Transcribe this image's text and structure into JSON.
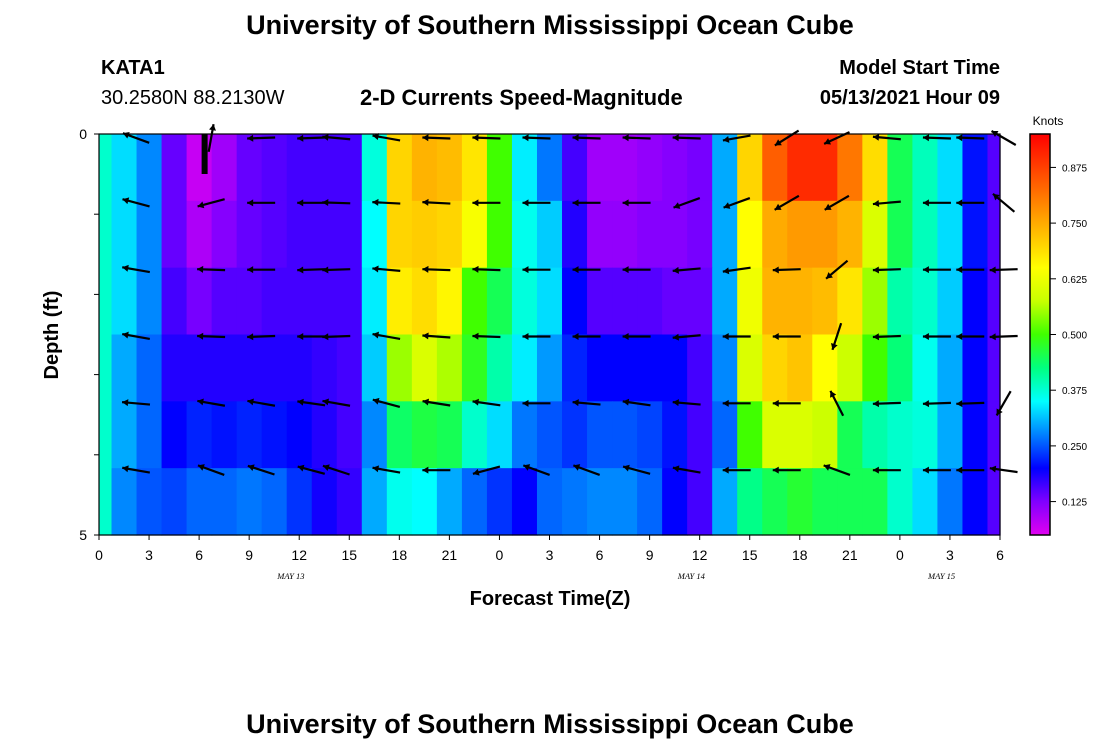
{
  "header": {
    "title": "University of Southern Mississippi Ocean Cube",
    "station": "KATA1",
    "coords": "30.2580N  88.2130W",
    "plot_title": "2-D Currents Speed-Magnitude",
    "model_label": "Model Start Time",
    "model_time": "05/13/2021 Hour 09"
  },
  "footer": {
    "title": "University of Southern Mississippi Ocean Cube"
  },
  "colors": {
    "scale": [
      "#e000f0",
      "#8000ff",
      "#0000ff",
      "#0080ff",
      "#00ffff",
      "#00ff80",
      "#40ff00",
      "#c8ff00",
      "#ffff00",
      "#ffc000",
      "#ff8000",
      "#ff4000",
      "#ff0000"
    ]
  },
  "chart_data": {
    "type": "heatmap",
    "title": "2-D Currents Speed-Magnitude",
    "xlabel": "Forecast Time(Z)",
    "ylabel": "Depth (ft)",
    "colorbar_label": "Knots",
    "colorbar_ticks": [
      "0.125",
      "0.250",
      "0.375",
      "0.500",
      "0.625",
      "0.750",
      "0.875"
    ],
    "colorbar_tick_values": [
      0.125,
      0.25,
      0.375,
      0.5,
      0.625,
      0.75,
      0.875
    ],
    "colorbar_range": [
      0.05,
      0.95
    ],
    "x_range_hours": [
      0,
      54
    ],
    "x_tick_labels": [
      "0",
      "3",
      "6",
      "9",
      "12",
      "15",
      "18",
      "21",
      "0",
      "3",
      "6",
      "9",
      "12",
      "15",
      "18",
      "21",
      "0",
      "3",
      "6"
    ],
    "y_tick_labels": [
      "0",
      "5"
    ],
    "y_range": [
      0,
      5
    ],
    "date_labels": [
      {
        "text": "MAY 13",
        "hour": 11.5
      },
      {
        "text": "MAY 14",
        "hour": 35.5
      },
      {
        "text": "MAY 15",
        "hour": 50.5
      }
    ],
    "speed_grid_hours": [
      0,
      1.5,
      3,
      4.5,
      6,
      7.5,
      9,
      10.5,
      12,
      13.5,
      15,
      16.5,
      18,
      19.5,
      21,
      22.5,
      24,
      25.5,
      27,
      28.5,
      30,
      31.5,
      33,
      34.5,
      36,
      37.5,
      39,
      40.5,
      42,
      43.5,
      45,
      46.5,
      48,
      49.5,
      51,
      52.5,
      54
    ],
    "speed_rows": [
      [
        0.38,
        0.33,
        0.28,
        0.14,
        0.07,
        0.1,
        0.14,
        0.15,
        0.16,
        0.16,
        0.16,
        0.37,
        0.7,
        0.74,
        0.73,
        0.68,
        0.5,
        0.34,
        0.27,
        0.16,
        0.1,
        0.1,
        0.11,
        0.12,
        0.13,
        0.3,
        0.7,
        0.84,
        0.9,
        0.9,
        0.81,
        0.69,
        0.45,
        0.39,
        0.33,
        0.21,
        0.15
      ],
      [
        0.38,
        0.33,
        0.28,
        0.14,
        0.09,
        0.12,
        0.14,
        0.15,
        0.16,
        0.16,
        0.16,
        0.35,
        0.7,
        0.71,
        0.7,
        0.64,
        0.5,
        0.36,
        0.32,
        0.18,
        0.11,
        0.11,
        0.12,
        0.12,
        0.13,
        0.3,
        0.65,
        0.75,
        0.77,
        0.77,
        0.74,
        0.6,
        0.45,
        0.39,
        0.33,
        0.21,
        0.15
      ],
      [
        0.38,
        0.33,
        0.28,
        0.16,
        0.13,
        0.15,
        0.15,
        0.16,
        0.16,
        0.16,
        0.16,
        0.34,
        0.67,
        0.69,
        0.66,
        0.5,
        0.45,
        0.37,
        0.33,
        0.2,
        0.15,
        0.15,
        0.15,
        0.14,
        0.14,
        0.3,
        0.63,
        0.74,
        0.74,
        0.73,
        0.68,
        0.55,
        0.4,
        0.38,
        0.32,
        0.2,
        0.15
      ],
      [
        0.38,
        0.3,
        0.26,
        0.18,
        0.18,
        0.18,
        0.18,
        0.18,
        0.18,
        0.17,
        0.16,
        0.32,
        0.55,
        0.6,
        0.56,
        0.48,
        0.4,
        0.34,
        0.29,
        0.22,
        0.2,
        0.2,
        0.2,
        0.2,
        0.16,
        0.28,
        0.6,
        0.7,
        0.72,
        0.65,
        0.58,
        0.5,
        0.43,
        0.36,
        0.3,
        0.2,
        0.15
      ],
      [
        0.38,
        0.3,
        0.26,
        0.2,
        0.22,
        0.21,
        0.22,
        0.21,
        0.2,
        0.18,
        0.16,
        0.28,
        0.44,
        0.46,
        0.45,
        0.38,
        0.33,
        0.27,
        0.25,
        0.23,
        0.25,
        0.25,
        0.24,
        0.21,
        0.16,
        0.26,
        0.5,
        0.6,
        0.6,
        0.58,
        0.45,
        0.4,
        0.38,
        0.37,
        0.3,
        0.2,
        0.15
      ],
      [
        0.38,
        0.28,
        0.25,
        0.24,
        0.26,
        0.26,
        0.27,
        0.26,
        0.23,
        0.19,
        0.17,
        0.3,
        0.36,
        0.35,
        0.3,
        0.26,
        0.23,
        0.2,
        0.26,
        0.27,
        0.28,
        0.28,
        0.26,
        0.2,
        0.16,
        0.3,
        0.42,
        0.45,
        0.47,
        0.45,
        0.45,
        0.45,
        0.38,
        0.33,
        0.27,
        0.2,
        0.15
      ]
    ],
    "vector_hours": [
      1.5,
      6,
      9,
      12,
      13.5,
      16.5,
      19.5,
      22.5,
      25.5,
      28.5,
      31.5,
      34.5,
      37.5,
      40.5,
      43.5,
      46.5,
      49.5,
      51.5,
      53.5
    ],
    "vector_rows_deg": [
      [
        200,
        280,
        178,
        178,
        185,
        190,
        182,
        182,
        182,
        182,
        182,
        182,
        170,
        148,
        155,
        185,
        182,
        182,
        210
      ],
      [
        195,
        165,
        180,
        180,
        182,
        183,
        183,
        180,
        180,
        180,
        180,
        160,
        160,
        150,
        150,
        175,
        180,
        180,
        220
      ],
      [
        190,
        182,
        180,
        178,
        178,
        185,
        182,
        182,
        180,
        180,
        180,
        175,
        172,
        178,
        140,
        178,
        180,
        180,
        178
      ],
      [
        190,
        182,
        178,
        180,
        178,
        190,
        184,
        182,
        180,
        180,
        180,
        175,
        180,
        180,
        108,
        178,
        180,
        180,
        178
      ],
      [
        185,
        190,
        190,
        188,
        190,
        195,
        189,
        188,
        180,
        185,
        188,
        185,
        180,
        180,
        243,
        178,
        178,
        178,
        120
      ],
      [
        190,
        200,
        198,
        195,
        198,
        190,
        180,
        165,
        200,
        200,
        195,
        190,
        180,
        180,
        200,
        180,
        180,
        180,
        188
      ]
    ]
  }
}
